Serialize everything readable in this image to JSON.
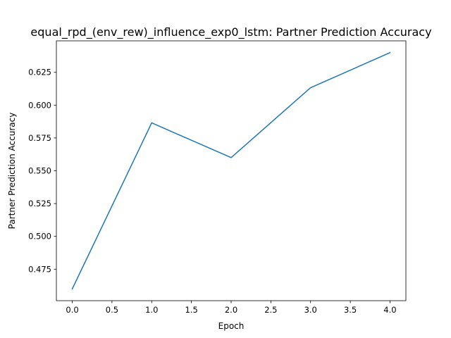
{
  "chart_data": {
    "type": "line",
    "title": "equal_rpd_(env_rew)_influence_exp0_lstm: Partner Prediction Accuracy",
    "xlabel": "Epoch",
    "ylabel": "Partner Prediction Accuracy",
    "x": [
      0,
      1,
      2,
      3,
      4
    ],
    "series": [
      {
        "values": [
          0.46,
          0.5865,
          0.56,
          0.6133,
          0.64
        ],
        "color": "#1f77b4"
      }
    ],
    "xlim": [
      -0.2,
      4.2
    ],
    "ylim": [
      0.451,
      0.649
    ],
    "xticks": [
      0,
      0.5,
      1,
      1.5,
      2,
      2.5,
      3,
      3.5,
      4
    ],
    "xtick_labels": [
      "0.0",
      "0.5",
      "1.0",
      "1.5",
      "2.0",
      "2.5",
      "3.0",
      "3.5",
      "4.0"
    ],
    "yticks": [
      0.475,
      0.5,
      0.525,
      0.55,
      0.575,
      0.6,
      0.625
    ],
    "ytick_labels": [
      "0.475",
      "0.500",
      "0.525",
      "0.550",
      "0.575",
      "0.600",
      "0.625"
    ],
    "grid": false,
    "legend": "none"
  }
}
